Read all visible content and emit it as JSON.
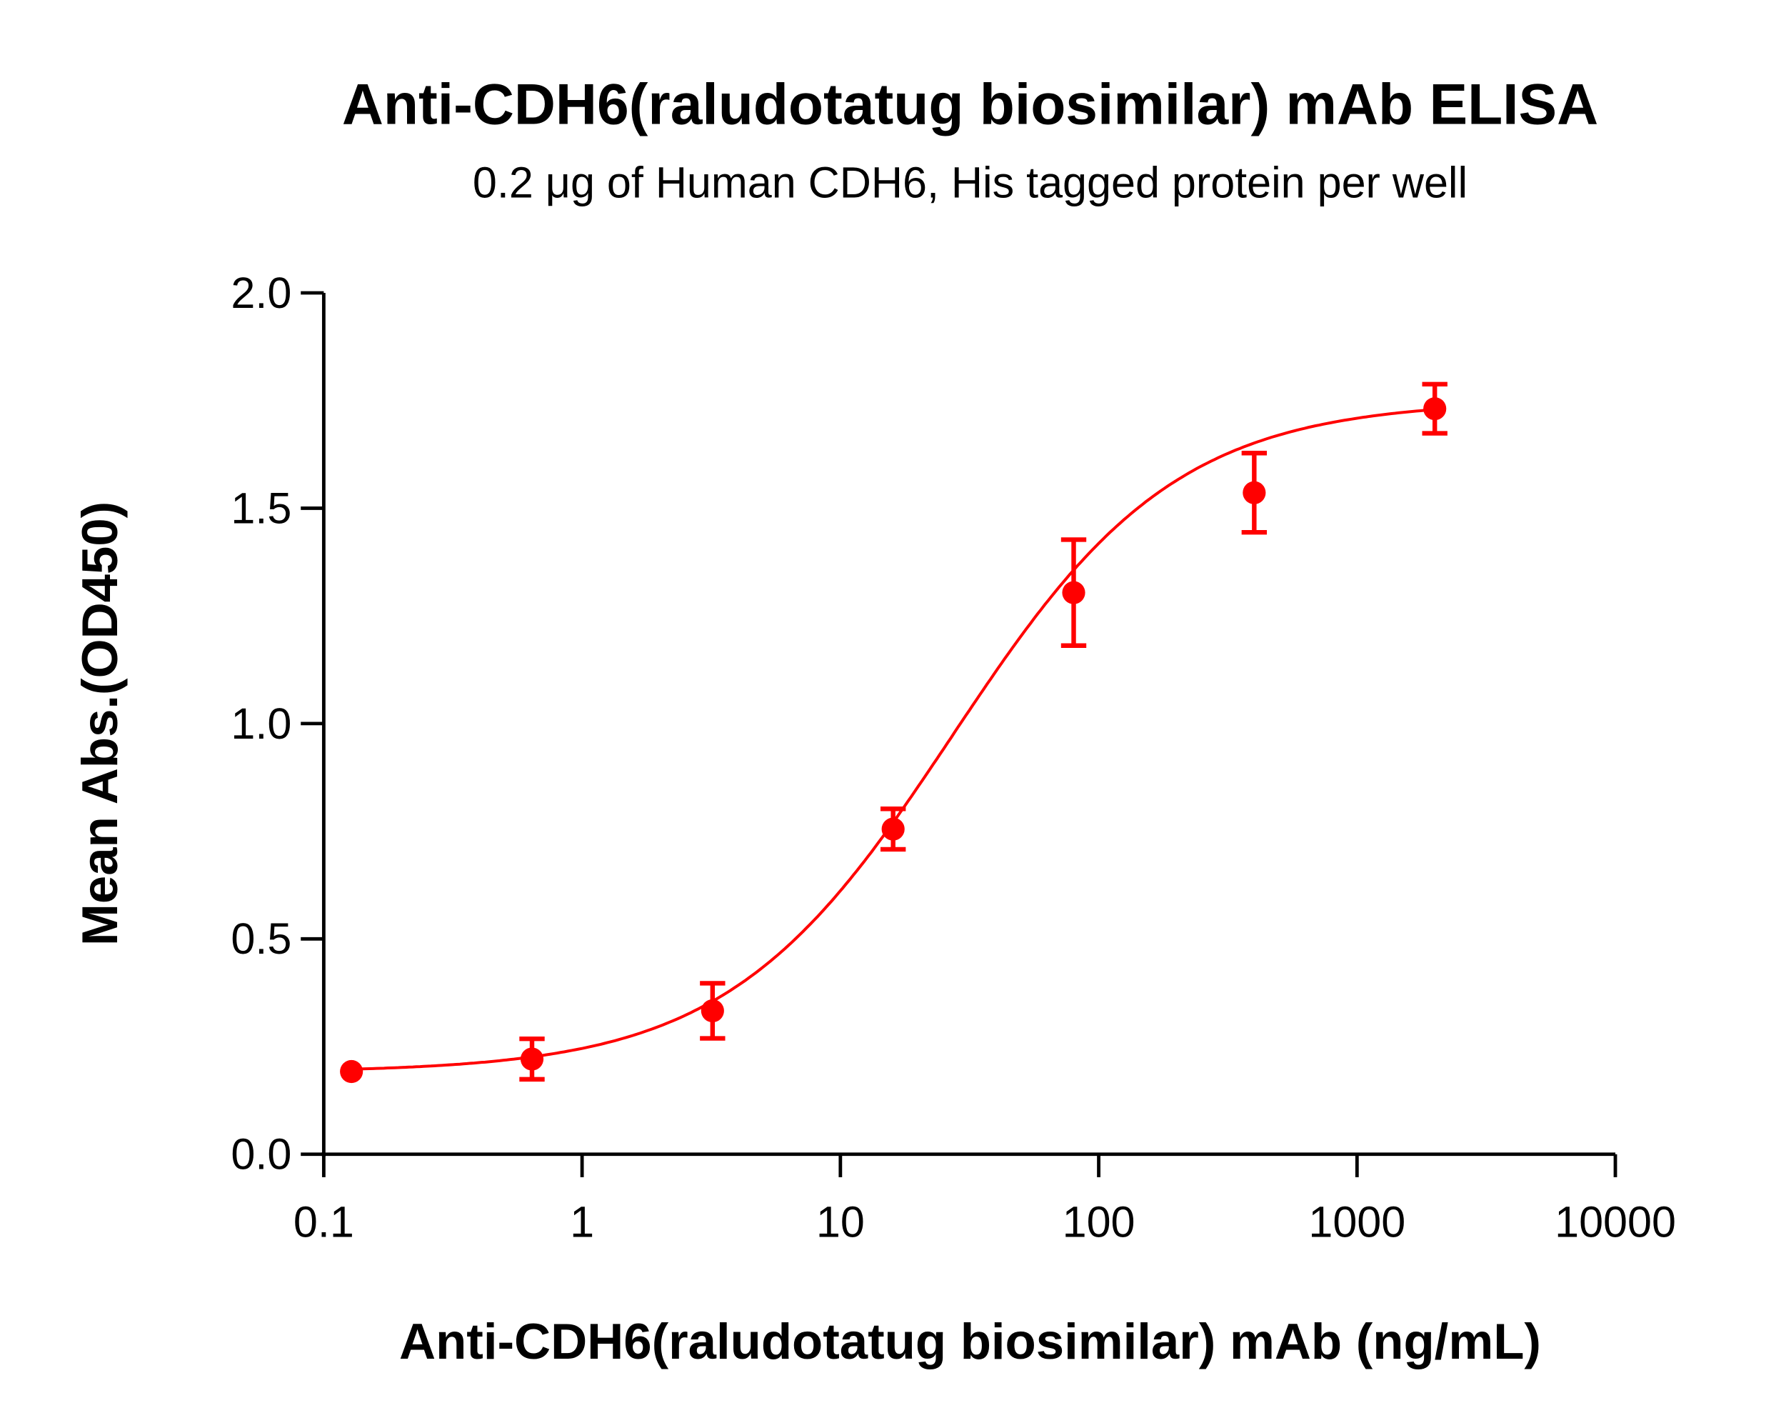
{
  "chart_data": {
    "type": "scatter",
    "title": "Anti-CDH6(raludotatug biosimilar) mAb ELISA",
    "subtitle": "0.2 μg of Human CDH6, His tagged protein per well",
    "xlabel": "Anti-CDH6(raludotatug biosimilar) mAb (ng/mL)",
    "ylabel": "Mean Abs.(OD450)",
    "xscale": "log",
    "xlim": [
      0.1,
      10000
    ],
    "ylim": [
      0,
      2.0
    ],
    "xticks": [
      "0.1",
      "1",
      "10",
      "100",
      "1000",
      "10000"
    ],
    "xtick_values": [
      0.1,
      1,
      10,
      100,
      1000,
      10000
    ],
    "yticks": [
      "0.0",
      "0.5",
      "1.0",
      "1.5",
      "2.0"
    ],
    "ytick_values": [
      0,
      0.5,
      1.0,
      1.5,
      2.0
    ],
    "grid": false,
    "color": "#ff0000",
    "points": [
      {
        "x": 0.128,
        "y": 0.192,
        "err": 0.0
      },
      {
        "x": 0.64,
        "y": 0.221,
        "err": 0.047
      },
      {
        "x": 3.2,
        "y": 0.333,
        "err": 0.064
      },
      {
        "x": 16,
        "y": 0.755,
        "err": 0.047
      },
      {
        "x": 80,
        "y": 1.304,
        "err": 0.123
      },
      {
        "x": 400,
        "y": 1.536,
        "err": 0.092
      },
      {
        "x": 2000,
        "y": 1.731,
        "err": 0.057
      }
    ],
    "fit": {
      "model": "4PL",
      "bottom": 0.19,
      "top": 1.75,
      "ec50": 27,
      "hill": 1.0
    }
  }
}
